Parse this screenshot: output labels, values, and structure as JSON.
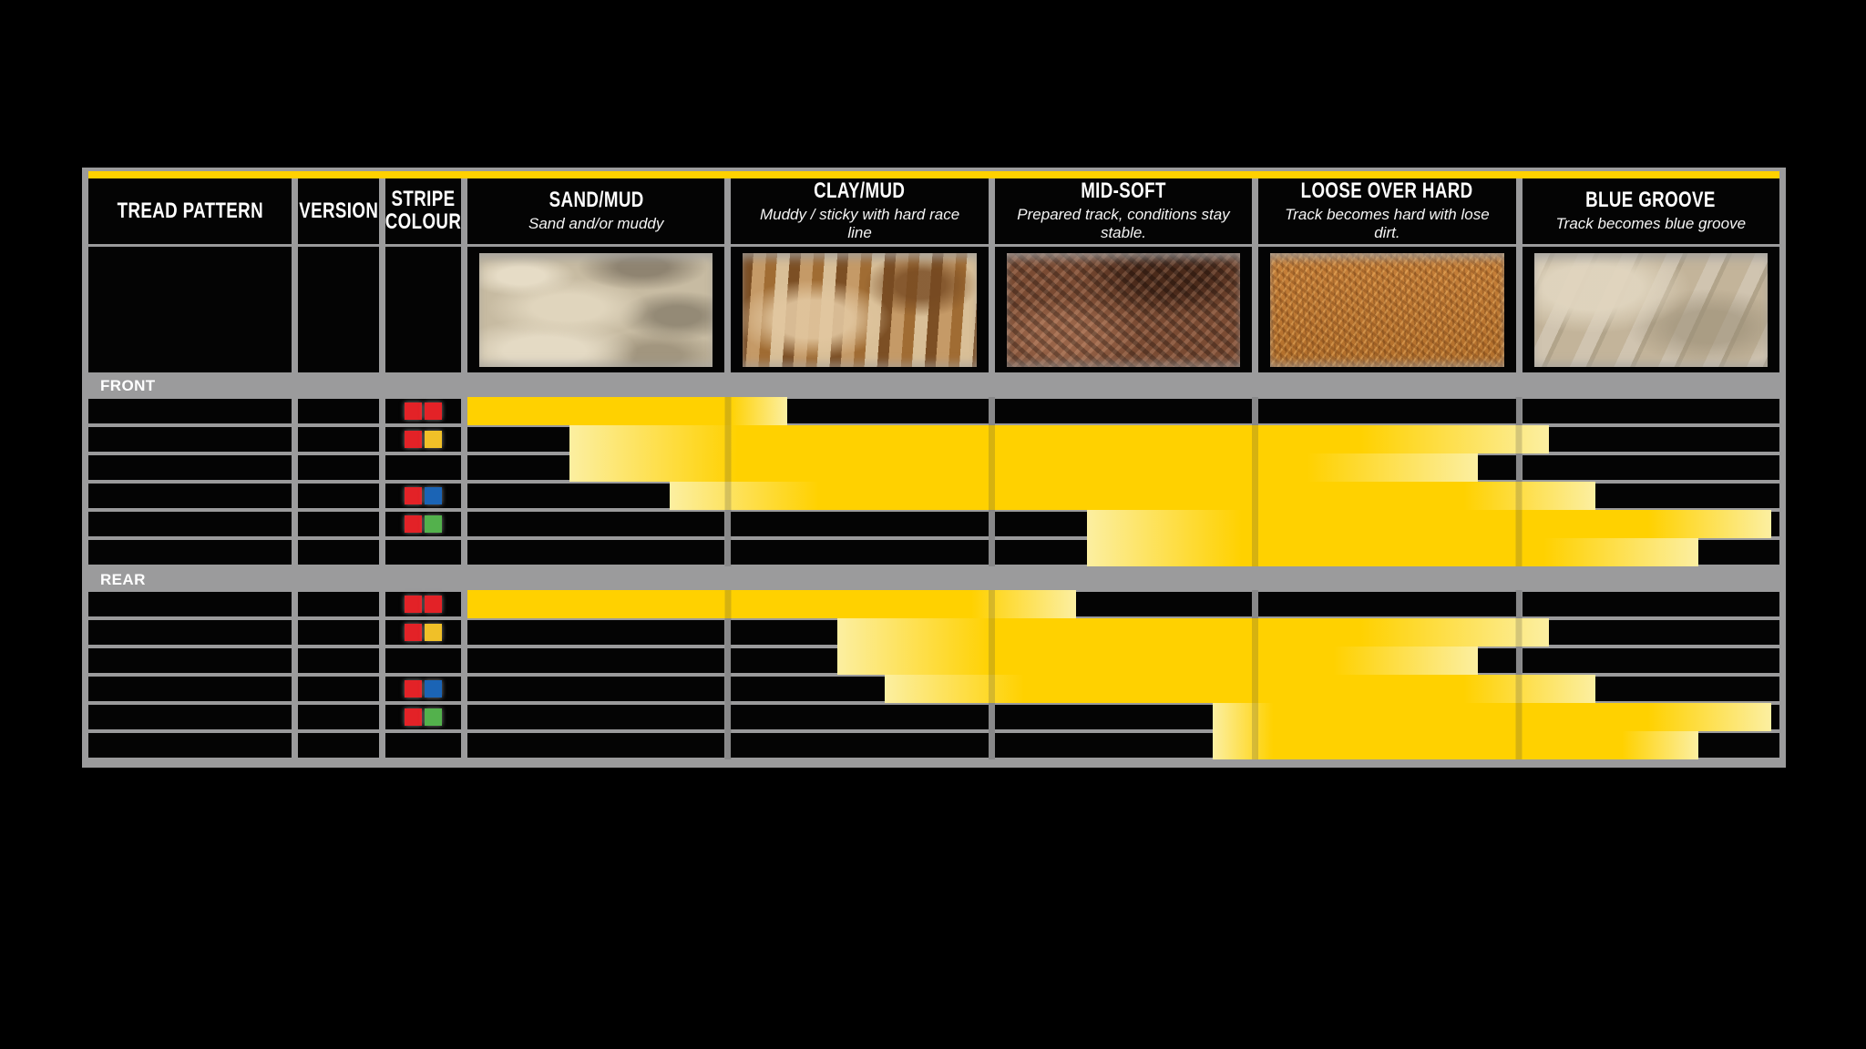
{
  "page": {
    "background": "#000000"
  },
  "table": {
    "accent_color": "#FFD100",
    "frame_color": "#9B9B9C",
    "cell_color": "#040404",
    "bar_colors": {
      "solid": "#FFD100",
      "pale": "#FCEFA1"
    },
    "swatch_colors": {
      "red": "#E32227",
      "yellow": "#F0C028",
      "blue": "#1B64B5",
      "green": "#53B14C"
    },
    "columns": [
      {
        "id": "tread",
        "label": "TREAD PATTERN"
      },
      {
        "id": "version",
        "label": "VERSION"
      },
      {
        "id": "stripe",
        "label": "STRIPE COLOUR"
      },
      {
        "id": "sand",
        "label": "SAND/MUD",
        "sublabel": "Sand and/or muddy",
        "texture": "sand-dunes-photo"
      },
      {
        "id": "clay",
        "label": "CLAY/MUD",
        "sublabel": "Muddy / sticky with hard race line",
        "texture": "muddy-clay-ruts-photo"
      },
      {
        "id": "mid",
        "label": "MID-SOFT",
        "sublabel": "Prepared track, conditions stay stable.",
        "texture": "dark-loamy-soil-photo"
      },
      {
        "id": "loose",
        "label": "LOOSE OVER HARD",
        "sublabel": "Track becomes hard with lose dirt.",
        "texture": "loose-gravel-dirt-photo"
      },
      {
        "id": "blue",
        "label": "BLUE GROOVE",
        "sublabel": "Track becomes blue groove",
        "texture": "hardpack-blue-groove-photo"
      }
    ],
    "sections": [
      {
        "label": "FRONT",
        "rows": [
          {
            "stripe_colours": [
              "red",
              "red"
            ],
            "bar": {
              "start": 0,
              "fade_in_end": 0,
              "fade_out_start": 1.0,
              "end": 1.22
            }
          },
          {
            "stripe_colours": [
              "red",
              "yellow"
            ],
            "bar": {
              "start": 0.39,
              "fade_in_end": 1.03,
              "fade_out_start": 3.4,
              "end": 4.12
            }
          },
          {
            "stripe_colours": [],
            "bar": {
              "start": 0.39,
              "fade_in_end": 1.03,
              "fade_out_start": 3.2,
              "end": 3.85
            }
          },
          {
            "stripe_colours": [
              "red",
              "blue"
            ],
            "bar": {
              "start": 0.77,
              "fade_in_end": 1.34,
              "fade_out_start": 3.8,
              "end": 4.3
            }
          },
          {
            "stripe_colours": [
              "red",
              "green"
            ],
            "bar": {
              "start": 2.36,
              "fade_in_end": 2.95,
              "fade_out_start": 4.5,
              "end": 4.97
            }
          },
          {
            "stripe_colours": [],
            "bar": {
              "start": 2.36,
              "fade_in_end": 2.95,
              "fade_out_start": 4.1,
              "end": 4.69
            }
          }
        ]
      },
      {
        "label": "REAR",
        "rows": [
          {
            "stripe_colours": [
              "red",
              "red"
            ],
            "bar": {
              "start": 0,
              "fade_in_end": 0,
              "fade_out_start": 1.92,
              "end": 2.32
            }
          },
          {
            "stripe_colours": [
              "red",
              "yellow"
            ],
            "bar": {
              "start": 1.41,
              "fade_in_end": 2.0,
              "fade_out_start": 3.4,
              "end": 4.12
            }
          },
          {
            "stripe_colours": [],
            "bar": {
              "start": 1.41,
              "fade_in_end": 2.0,
              "fade_out_start": 3.3,
              "end": 3.85
            }
          },
          {
            "stripe_colours": [
              "red",
              "blue"
            ],
            "bar": {
              "start": 1.59,
              "fade_in_end": 2.12,
              "fade_out_start": 3.8,
              "end": 4.3
            }
          },
          {
            "stripe_colours": [
              "red",
              "green"
            ],
            "bar": {
              "start": 2.84,
              "fade_in_end": 3.07,
              "fade_out_start": 4.5,
              "end": 4.97
            }
          },
          {
            "stripe_colours": [],
            "bar": {
              "start": 2.84,
              "fade_in_end": 3.07,
              "fade_out_start": 4.4,
              "end": 4.69
            }
          }
        ]
      }
    ]
  },
  "chart_data": {
    "type": "bar",
    "variant": "horizontal-range-chart",
    "title": "",
    "condition_columns": [
      "SAND/MUD",
      "CLAY/MUD",
      "MID-SOFT",
      "LOOSE OVER HARD",
      "BLUE GROOVE"
    ],
    "condition_descriptions": [
      "Sand and/or muddy",
      "Muddy / sticky with hard race line",
      "Prepared track, conditions stay stable.",
      "Track becomes hard with lose dirt.",
      "Track becomes blue groove"
    ],
    "scale_note": "range units: 0 = left edge of SAND/MUD column, 5 = right edge of BLUE GROOVE column",
    "legend_position": "none",
    "grid": true,
    "sections": [
      {
        "name": "FRONT",
        "rows": [
          {
            "stripe_colour": [
              "red",
              "red"
            ],
            "range": [
              0,
              1.22
            ]
          },
          {
            "stripe_colour": [
              "red",
              "yellow"
            ],
            "range": [
              0.39,
              4.12
            ]
          },
          {
            "stripe_colour": [],
            "range": [
              0.39,
              3.85
            ]
          },
          {
            "stripe_colour": [
              "red",
              "blue"
            ],
            "range": [
              0.77,
              4.3
            ]
          },
          {
            "stripe_colour": [
              "red",
              "green"
            ],
            "range": [
              2.36,
              4.97
            ]
          },
          {
            "stripe_colour": [],
            "range": [
              2.36,
              4.69
            ]
          }
        ]
      },
      {
        "name": "REAR",
        "rows": [
          {
            "stripe_colour": [
              "red",
              "red"
            ],
            "range": [
              0,
              2.32
            ]
          },
          {
            "stripe_colour": [
              "red",
              "yellow"
            ],
            "range": [
              1.41,
              4.12
            ]
          },
          {
            "stripe_colour": [],
            "range": [
              1.41,
              3.85
            ]
          },
          {
            "stripe_colour": [
              "red",
              "blue"
            ],
            "range": [
              1.59,
              4.3
            ]
          },
          {
            "stripe_colour": [
              "red",
              "green"
            ],
            "range": [
              2.84,
              4.97
            ]
          },
          {
            "stripe_colour": [],
            "range": [
              2.84,
              4.69
            ]
          }
        ]
      }
    ]
  }
}
